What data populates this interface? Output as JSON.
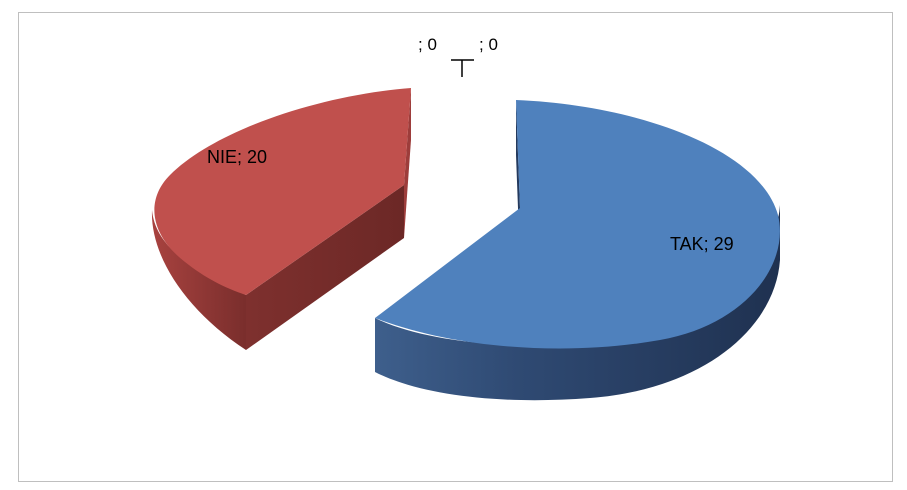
{
  "chart_data": {
    "type": "pie",
    "style": "3d-exploded",
    "series": [
      {
        "categories": [
          "TAK",
          "NIE",
          "",
          ""
        ],
        "values": [
          29,
          20,
          0,
          0
        ]
      }
    ],
    "data_labels": [
      "TAK; 29",
      "NIE; 20",
      "; 0",
      "; 0"
    ],
    "colors": [
      "#4f81bd",
      "#c0504d",
      "#9bbb59",
      "#8064a2"
    ],
    "legend": "none"
  }
}
